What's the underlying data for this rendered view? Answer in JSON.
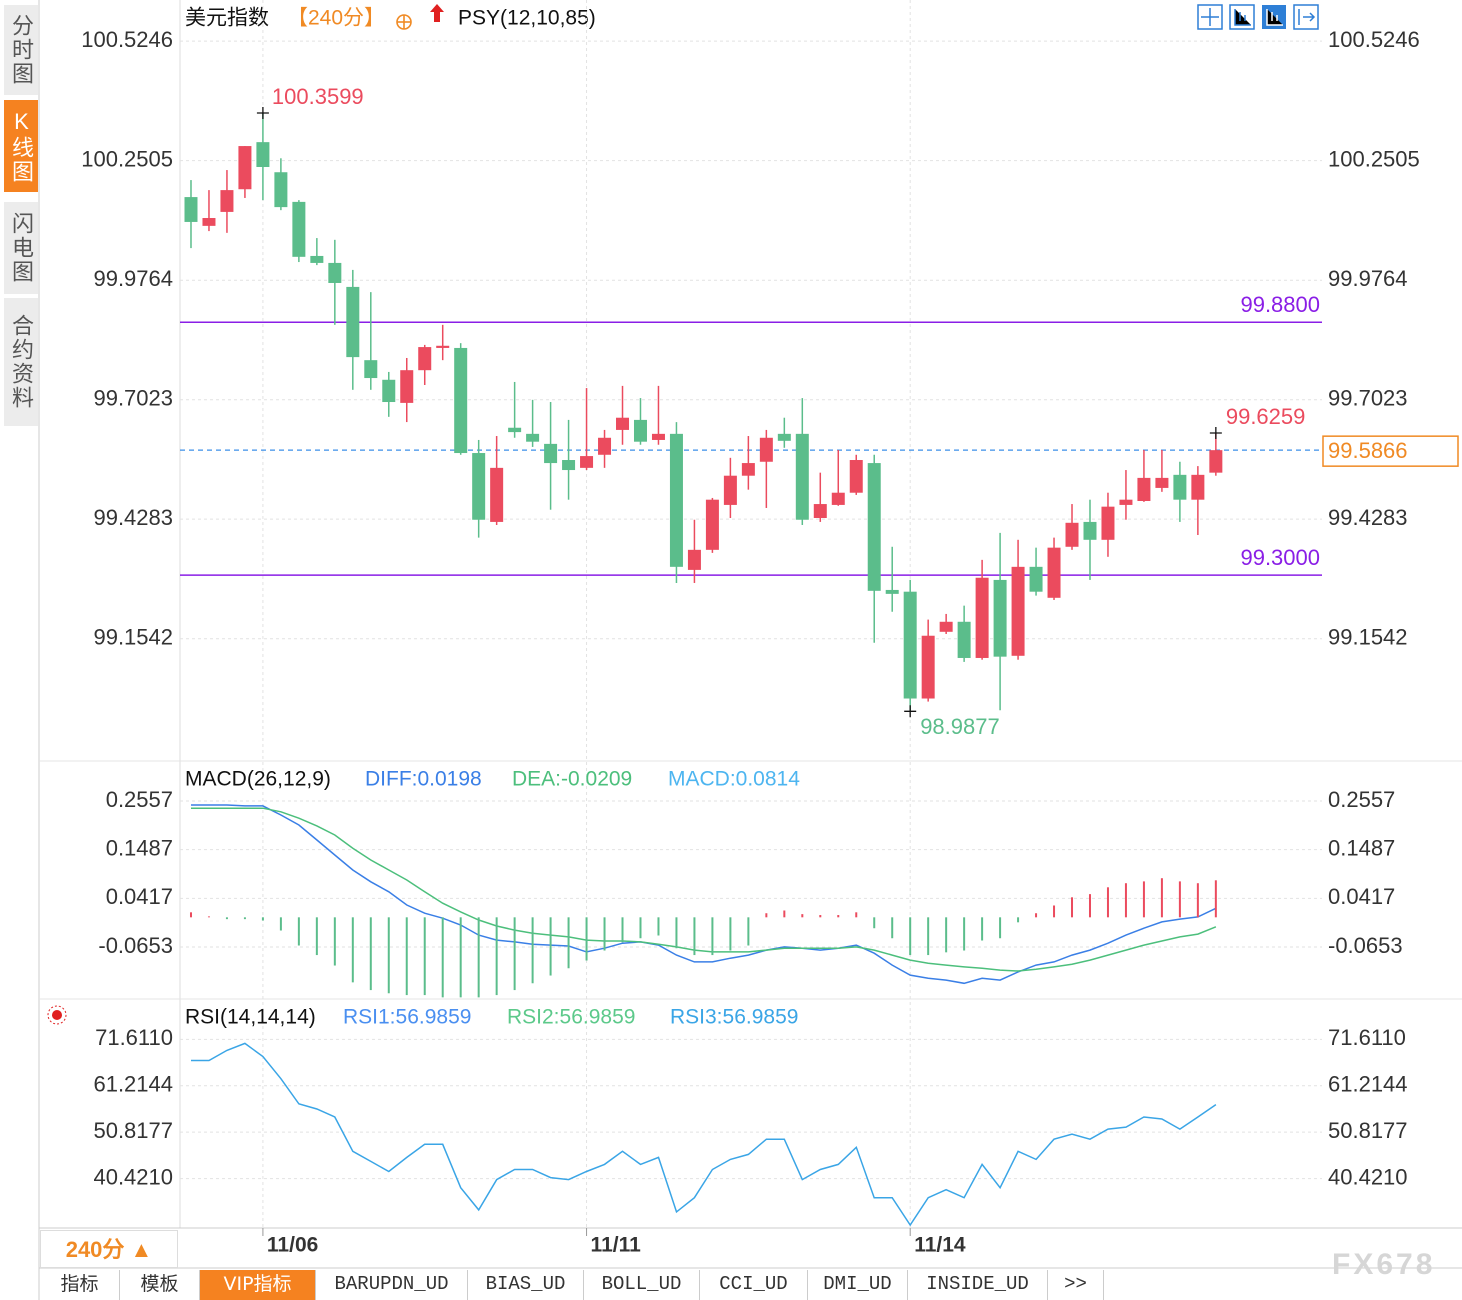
{
  "sidebar": {
    "tabs": [
      "分时图",
      "K线图",
      "闪电图",
      "合约资料"
    ],
    "active": 1
  },
  "period_selector": "240分 ▲",
  "bottom_tabs": {
    "tabs": [
      "指标",
      "模板",
      "VIP指标",
      "BARUPDN_UD",
      "BIAS_UD",
      "BOLL_UD",
      "CCI_UD",
      "DMI_UD",
      "INSIDE_UD",
      ">>"
    ],
    "active": 2
  },
  "watermark": "FX678",
  "chart_data": [
    {
      "type": "candlestick",
      "title": "美元指数",
      "period": "【240分】",
      "indicator": "PSY(12,10,85)",
      "categories": [
        null,
        null,
        null,
        null,
        "11/06",
        null,
        null,
        null,
        null,
        null,
        null,
        null,
        null,
        null,
        null,
        null,
        null,
        null,
        null,
        null,
        null,
        null,
        "11/11",
        null,
        null,
        null,
        null,
        null,
        null,
        null,
        null,
        null,
        null,
        null,
        null,
        null,
        null,
        null,
        null,
        null,
        "11/14",
        null,
        null,
        null,
        null,
        null,
        null,
        null,
        null,
        null,
        null,
        null,
        null,
        null,
        null,
        null,
        null,
        null
      ],
      "open": [
        100.167,
        100.101,
        100.133,
        100.185,
        100.293,
        100.224,
        100.156,
        100.032,
        100.016,
        99.961,
        99.793,
        99.748,
        99.695,
        99.77,
        99.821,
        99.821,
        99.58,
        99.422,
        99.638,
        99.624,
        99.601,
        99.564,
        99.546,
        99.576,
        99.633,
        99.656,
        99.61,
        99.624,
        99.312,
        99.358,
        99.461,
        99.528,
        99.56,
        99.624,
        99.624,
        99.431,
        99.461,
        99.489,
        99.557,
        99.266,
        99.262,
        99.017,
        99.17,
        99.193,
        99.11,
        99.289,
        99.115,
        99.319,
        99.248,
        99.365,
        99.422,
        99.381,
        99.461,
        99.47,
        99.5,
        99.53,
        99.473,
        99.535
      ],
      "high": [
        100.206,
        100.183,
        100.229,
        100.284,
        100.3599,
        100.256,
        100.16,
        100.073,
        100.069,
        100.0,
        99.949,
        99.766,
        99.798,
        99.828,
        99.874,
        99.832,
        99.61,
        99.619,
        99.743,
        99.702,
        99.697,
        99.656,
        99.729,
        99.633,
        99.734,
        99.706,
        99.734,
        99.651,
        99.427,
        99.477,
        99.569,
        99.619,
        99.633,
        99.661,
        99.706,
        99.535,
        99.587,
        99.576,
        99.576,
        99.365,
        99.289,
        99.198,
        99.211,
        99.23,
        99.335,
        99.397,
        99.381,
        99.363,
        99.386,
        99.463,
        99.473,
        99.489,
        99.541,
        99.587,
        99.587,
        99.56,
        99.55,
        99.6259
      ],
      "low": [
        100.05,
        100.089,
        100.085,
        100.165,
        100.16,
        100.137,
        100.018,
        100.011,
        99.874,
        99.725,
        99.725,
        99.663,
        99.651,
        99.736,
        99.793,
        99.576,
        99.386,
        99.415,
        99.615,
        99.594,
        99.45,
        99.473,
        99.541,
        99.546,
        99.599,
        99.599,
        99.599,
        99.282,
        99.282,
        99.351,
        99.431,
        99.496,
        99.454,
        99.592,
        99.415,
        99.422,
        99.459,
        99.484,
        99.145,
        99.216,
        98.9877,
        99.01,
        99.165,
        99.101,
        99.106,
        98.99,
        99.106,
        99.253,
        99.243,
        99.358,
        99.289,
        99.342,
        99.427,
        99.468,
        99.491,
        99.422,
        99.392,
        99.528
      ],
      "close": [
        100.11,
        100.119,
        100.183,
        100.284,
        100.236,
        100.144,
        100.03,
        100.016,
        99.97,
        99.8,
        99.752,
        99.697,
        99.77,
        99.823,
        99.826,
        99.58,
        99.427,
        99.546,
        99.628,
        99.606,
        99.557,
        99.541,
        99.573,
        99.615,
        99.661,
        99.606,
        99.624,
        99.319,
        99.358,
        99.473,
        99.528,
        99.557,
        99.615,
        99.608,
        99.427,
        99.463,
        99.489,
        99.564,
        99.264,
        99.257,
        99.017,
        99.161,
        99.193,
        99.11,
        99.294,
        99.113,
        99.319,
        99.262,
        99.363,
        99.42,
        99.381,
        99.457,
        99.473,
        99.523,
        99.523,
        99.473,
        99.53,
        99.5866
      ],
      "up_color": "#eb4b5e",
      "down_color": "#5bbd8b",
      "last_color": "#f08a24",
      "last_line_color": "#3b8fe8",
      "hlines": [
        {
          "value": 99.88,
          "label": "99.8800"
        },
        {
          "value": 99.3,
          "label": "99.3000"
        }
      ],
      "hline_color": "#8a1ee6",
      "ylim": [
        98.876,
        100.619
      ],
      "yticks": [
        100.5246,
        100.2505,
        99.9764,
        99.7023,
        99.4283,
        99.1542
      ],
      "grid": true
    },
    {
      "type": "macd",
      "title": "MACD(26,12,9)",
      "series": [
        {
          "name": "DIFF:0.0198",
          "type": "line",
          "color": "#3a7fe6",
          "values": [
            0.247,
            0.247,
            0.247,
            0.245,
            0.245,
            0.225,
            0.203,
            0.17,
            0.137,
            0.104,
            0.078,
            0.056,
            0.027,
            0.009,
            -0.002,
            -0.017,
            -0.039,
            -0.05,
            -0.054,
            -0.059,
            -0.061,
            -0.063,
            -0.076,
            -0.068,
            -0.057,
            -0.054,
            -0.061,
            -0.083,
            -0.098,
            -0.098,
            -0.09,
            -0.083,
            -0.072,
            -0.065,
            -0.068,
            -0.072,
            -0.068,
            -0.061,
            -0.079,
            -0.105,
            -0.127,
            -0.134,
            -0.138,
            -0.145,
            -0.134,
            -0.138,
            -0.12,
            -0.105,
            -0.098,
            -0.083,
            -0.072,
            -0.057,
            -0.039,
            -0.024,
            -0.01,
            -0.004,
            0.001,
            0.0198
          ]
        },
        {
          "name": "DEA:-0.0209",
          "type": "line",
          "color": "#4cbf7c",
          "values": [
            0.24,
            0.24,
            0.24,
            0.24,
            0.24,
            0.232,
            0.218,
            0.201,
            0.181,
            0.152,
            0.126,
            0.104,
            0.082,
            0.056,
            0.031,
            0.012,
            -0.006,
            -0.019,
            -0.028,
            -0.035,
            -0.039,
            -0.043,
            -0.05,
            -0.052,
            -0.052,
            -0.054,
            -0.059,
            -0.065,
            -0.072,
            -0.076,
            -0.076,
            -0.076,
            -0.072,
            -0.068,
            -0.068,
            -0.068,
            -0.068,
            -0.065,
            -0.072,
            -0.083,
            -0.094,
            -0.101,
            -0.105,
            -0.109,
            -0.112,
            -0.116,
            -0.118,
            -0.114,
            -0.109,
            -0.103,
            -0.094,
            -0.083,
            -0.072,
            -0.061,
            -0.052,
            -0.043,
            -0.037,
            -0.0209
          ]
        },
        {
          "name": "MACD:0.0814",
          "type": "bar",
          "color": "#4db5f0",
          "up_color": "#eb4b5e",
          "down_color": "#5bbd8b",
          "values": [
            0.011,
            0.002,
            -0.004,
            -0.004,
            -0.007,
            -0.029,
            -0.062,
            -0.083,
            -0.106,
            -0.143,
            -0.16,
            -0.167,
            -0.171,
            -0.171,
            -0.176,
            -0.176,
            -0.176,
            -0.171,
            -0.16,
            -0.145,
            -0.128,
            -0.112,
            -0.095,
            -0.073,
            -0.055,
            -0.046,
            -0.04,
            -0.068,
            -0.083,
            -0.083,
            -0.073,
            -0.062,
            0.009,
            0.015,
            0.007,
            0.005,
            0.005,
            0.011,
            -0.024,
            -0.046,
            -0.083,
            -0.083,
            -0.077,
            -0.073,
            -0.051,
            -0.046,
            -0.011,
            0.009,
            0.026,
            0.044,
            0.051,
            0.066,
            0.075,
            0.079,
            0.086,
            0.079,
            0.075,
            0.0814
          ]
        }
      ],
      "ylim": [
        -0.1774,
        0.3415
      ],
      "yticks": [
        0.2557,
        0.1487,
        0.0417,
        -0.0653
      ],
      "grid": true
    },
    {
      "type": "line",
      "title": "RSI(14,14,14)",
      "series": [
        {
          "name": "RSI1:56.9859",
          "color": "#4a8ff0"
        },
        {
          "name": "RSI2:56.9859",
          "color": "#5cc98a"
        },
        {
          "name": "RSI3:56.9859",
          "color": "#3aa5e6",
          "values": [
            66.865,
            66.865,
            69.125,
            70.707,
            67.769,
            62.796,
            57.146,
            56.016,
            54.207,
            46.523,
            44.263,
            42.002,
            45.167,
            48.105,
            48.105,
            38.386,
            33.414,
            40.194,
            42.454,
            42.454,
            40.646,
            40.194,
            42.002,
            43.585,
            46.523,
            43.585,
            45.167,
            32.962,
            36.126,
            42.454,
            44.715,
            45.845,
            49.235,
            49.235,
            40.194,
            42.454,
            43.585,
            47.427,
            36.126,
            36.126,
            30.023,
            36.126,
            37.934,
            36.126,
            43.585,
            38.386,
            46.523,
            44.715,
            49.235,
            50.365,
            49.235,
            51.495,
            51.947,
            54.207,
            53.755,
            51.495,
            54.207,
            56.9859
          ]
        }
      ],
      "ylim": [
        29.35,
        80.42
      ],
      "yticks": [
        {
          "value": 71.611,
          "label": "71.6110"
        },
        61.2144,
        50.8177,
        {
          "value": 40.421,
          "label": "40.4210"
        }
      ],
      "grid": true
    }
  ]
}
